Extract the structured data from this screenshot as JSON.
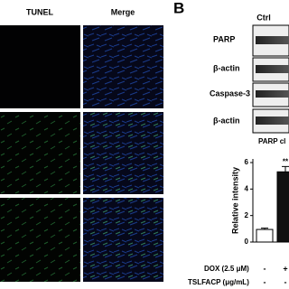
{
  "figure": {
    "panel_label": "B",
    "image_columns": [
      "TUNEL",
      "Merge"
    ],
    "blot_column": "Ctrl",
    "blot_rows": [
      "PARP",
      "β-actin",
      "Caspase-3",
      "β-actin"
    ],
    "chart_caption": "PARP cl",
    "conditions": [
      {
        "label": "DOX (2.5 μM)",
        "values": [
          "-",
          "+"
        ]
      },
      {
        "label": "TSLFACP (μg/mL)",
        "values": [
          "-",
          "-"
        ]
      }
    ]
  },
  "chart_data": {
    "type": "bar",
    "y_label": "Relative intensity",
    "categories": [
      null,
      null
    ],
    "values": [
      0.95,
      5.3
    ],
    "errors": [
      0.1,
      0.4
    ],
    "colors": [
      "#ffffff",
      "#111111"
    ],
    "annotations": [
      null,
      "**"
    ],
    "ylim": [
      0,
      6
    ],
    "yticks": [
      0,
      2,
      4,
      6
    ]
  }
}
